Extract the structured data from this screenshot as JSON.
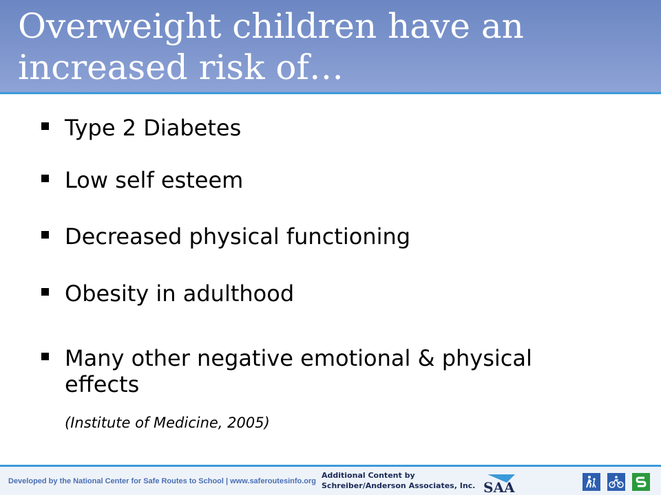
{
  "slide": {
    "title": "Overweight children have an increased risk of…",
    "bullets": [
      "Type 2 Diabetes",
      "Low self esteem",
      "Decreased physical functioning",
      "Obesity in adulthood",
      "Many other negative emotional & physical effects"
    ],
    "citation": "(Institute of Medicine, 2005)"
  },
  "footer": {
    "developed_by": "Developed by the National Center for Safe Routes to School | www.saferoutesinfo.org",
    "credit_line1": "Additional Content by",
    "credit_line2": "Schreiber/Anderson Associates, Inc.",
    "logo_text": "SAA",
    "icons": [
      "walking-icon",
      "bicycle-icon",
      "safe-routes-s-icon"
    ]
  },
  "colors": {
    "header_top": "#6b86c2",
    "header_bottom": "#8ea3d6",
    "rule": "#3a9ad9",
    "footer_text": "#4a6fb3",
    "icon_blue": "#2d5fb0",
    "icon_green": "#2a9a3c"
  }
}
